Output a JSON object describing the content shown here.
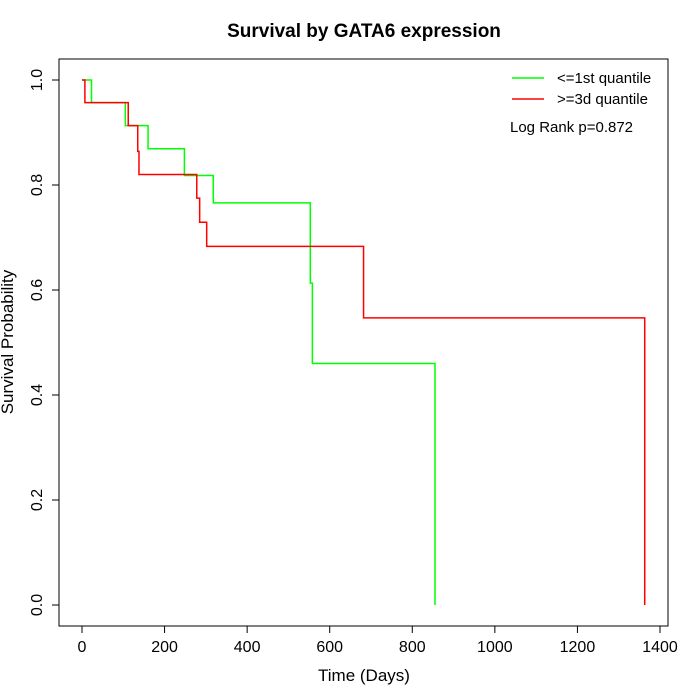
{
  "chart_data": {
    "type": "line",
    "title": "Survival by GATA6 expression",
    "xlabel": "Time (Days)",
    "ylabel": "Survival Probability",
    "xlim": [
      0,
      1400
    ],
    "ylim": [
      0,
      1
    ],
    "x_ticks": [
      0,
      200,
      400,
      600,
      800,
      1000,
      1200,
      1400
    ],
    "x_tick_labels": [
      "0",
      "200",
      "400",
      "600",
      "800",
      "1000",
      "1200",
      "1400"
    ],
    "y_ticks": [
      0,
      0.2,
      0.4,
      0.6,
      0.8,
      1.0
    ],
    "y_tick_labels": [
      "0.0",
      "0.2",
      "0.4",
      "0.6",
      "0.8",
      "1.0"
    ],
    "grid": false,
    "legend_position": "top-right",
    "annotation": "Log Rank p=0.872",
    "series": [
      {
        "name": "<=1st quantile",
        "color": "#00ff00",
        "step_times": [
          0,
          23,
          105,
          160,
          248,
          318,
          553,
          558,
          855
        ],
        "step_survival": [
          1.0,
          0.957,
          0.913,
          0.869,
          0.818,
          0.766,
          0.613,
          0.46,
          0.0
        ]
      },
      {
        "name": ">=3d quantile",
        "color": "#ff0000",
        "step_times": [
          0,
          7,
          112,
          130,
          135,
          138,
          278,
          282,
          285,
          302,
          682,
          1363
        ],
        "step_survival": [
          1.0,
          0.957,
          0.913,
          0.913,
          0.864,
          0.82,
          0.775,
          0.775,
          0.729,
          0.683,
          0.547,
          0.0
        ]
      }
    ]
  }
}
